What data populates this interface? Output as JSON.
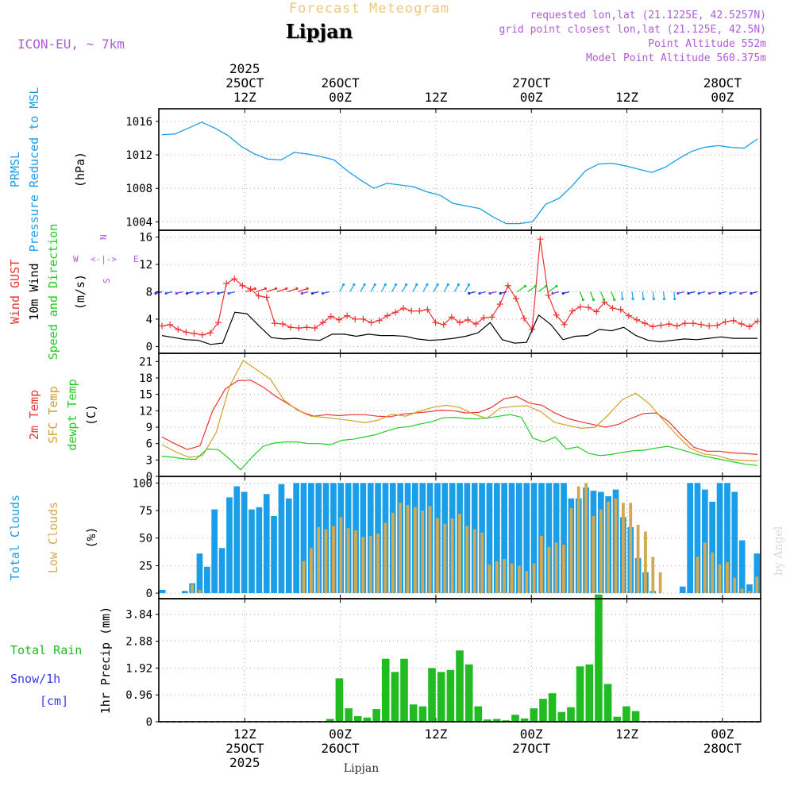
{
  "header": {
    "product": "Forecast Meteogram",
    "location": "Lipjan",
    "model": "ICON-EU, ~ 7km",
    "requested": "requested lon,lat (21.1225E, 42.5257N)",
    "grid_point": "grid point closest lon,lat (21.125E, 42.5N)",
    "point_altitude": "Point Altitude 552m",
    "model_altitude": "Model Point Altitude 560.375m",
    "watermark": "by Angel",
    "footer_location": "Lipjan",
    "compass": {
      "w": "W",
      "e": "E",
      "n": "N",
      "s": "S",
      "arrow": "<-|->"
    }
  },
  "colors": {
    "pressure": "#1a9ee8",
    "gust": "#ee3333",
    "wind": "#000000",
    "t2m": "#ee3333",
    "tsfc": "#d4a028",
    "dew": "#22cc22",
    "total_cloud": "#1a9ee8",
    "low_cloud": "#d4a850",
    "rain": "#22bb22",
    "meta": "#b05cd8",
    "snow": "#3a3ae8",
    "product": "#f0c878"
  },
  "chart_data": {
    "type": "meteogram",
    "time_axis": {
      "start_hour": 0,
      "end_hour": 63,
      "top_labels": [
        {
          "hour": 9,
          "lines": [
            "2025",
            "25OCT",
            "12Z"
          ]
        },
        {
          "hour": 19,
          "lines": [
            "26OCT",
            "00Z"
          ]
        },
        {
          "hour": 29,
          "lines": [
            "12Z"
          ]
        },
        {
          "hour": 39,
          "lines": [
            "27OCT",
            "00Z"
          ]
        },
        {
          "hour": 49,
          "lines": [
            "12Z"
          ]
        },
        {
          "hour": 59,
          "lines": [
            "28OCT",
            "00Z"
          ]
        }
      ],
      "bottom_labels": [
        {
          "hour": 9,
          "lines": [
            "12Z",
            "25OCT",
            "2025"
          ]
        },
        {
          "hour": 19,
          "lines": [
            "00Z",
            "26OCT"
          ]
        },
        {
          "hour": 29,
          "lines": [
            "12Z"
          ]
        },
        {
          "hour": 39,
          "lines": [
            "00Z",
            "27OCT"
          ]
        },
        {
          "hour": 49,
          "lines": [
            "12Z"
          ]
        },
        {
          "hour": 59,
          "lines": [
            "00Z",
            "28OCT"
          ]
        }
      ]
    },
    "panels": [
      {
        "id": "pressure",
        "type": "line",
        "ylabels": [
          "PRMSL",
          "Pressure Reduced to MSL",
          "(hPa)"
        ],
        "ylim": [
          1003,
          1017.5
        ],
        "yticks": [
          1004,
          1008,
          1012,
          1016
        ],
        "series": [
          {
            "name": "PRMSL",
            "color_key": "pressure",
            "values": [
              1014.4,
              1014.5,
              1015.2,
              1015.9,
              1015.2,
              1014.3,
              1013.0,
              1012.1,
              1011.5,
              1011.4,
              1012.3,
              1012.1,
              1011.8,
              1011.4,
              1010.1,
              1009.0,
              1008.0,
              1008.6,
              1008.4,
              1008.2,
              1007.6,
              1007.2,
              1006.2,
              1005.9,
              1005.6,
              1004.6,
              1003.8,
              1003.8,
              1004.0,
              1006.1,
              1006.8,
              1008.3,
              1010.1,
              1010.9,
              1011.0,
              1010.7,
              1010.3,
              1009.9,
              1010.5,
              1011.5,
              1012.4,
              1012.9,
              1013.1,
              1012.9,
              1012.8,
              1013.9
            ]
          }
        ]
      },
      {
        "id": "wind",
        "type": "line",
        "ylabels": [
          "Wind GUST",
          "10m Wind",
          "Speed and Direction",
          "(m/s)"
        ],
        "ylim": [
          -1,
          17
        ],
        "yticks": [
          0,
          4,
          8,
          12,
          16
        ],
        "series": [
          {
            "name": "Wind GUST",
            "color_key": "gust",
            "marker": "plus",
            "values": [
              3.0,
              3.2,
              2.5,
              2.1,
              1.9,
              1.7,
              2.0,
              3.5,
              9.2,
              9.9,
              8.9,
              8.4,
              7.4,
              7.2,
              3.4,
              3.3,
              2.8,
              2.7,
              2.8,
              2.7,
              3.5,
              4.4,
              3.9,
              4.5,
              4.0,
              4.0,
              3.5,
              3.8,
              4.5,
              5.0,
              5.6,
              5.2,
              5.2,
              5.4,
              3.5,
              3.2,
              4.3,
              3.5,
              3.9,
              3.3,
              4.2,
              4.3,
              6.2,
              8.9,
              7.0,
              4.1,
              2.5,
              15.7,
              7.5,
              4.6,
              3.2,
              5.2,
              5.8,
              5.7,
              5.1,
              6.5,
              5.6,
              5.4,
              4.5,
              3.9,
              3.4,
              2.9,
              3.1,
              3.3,
              3.0,
              3.4,
              3.4,
              3.2,
              3.0,
              3.1,
              3.6,
              3.8,
              3.3,
              2.9,
              3.7
            ]
          },
          {
            "name": "10m Wind",
            "color_key": "wind",
            "values": [
              1.6,
              1.3,
              1.0,
              0.9,
              0.3,
              0.5,
              5.0,
              4.8,
              3.0,
              1.3,
              1.1,
              1.2,
              1.0,
              0.9,
              1.8,
              1.8,
              1.5,
              1.8,
              1.6,
              1.6,
              1.5,
              1.1,
              0.9,
              1.0,
              1.2,
              1.5,
              2.0,
              3.5,
              1.0,
              0.5,
              0.6,
              4.6,
              3.2,
              1.0,
              1.5,
              1.6,
              2.5,
              2.3,
              2.8,
              1.6,
              0.9,
              0.7,
              0.9,
              1.1,
              1.0,
              1.2,
              1.4,
              1.2,
              1.2,
              1.2
            ]
          }
        ],
        "barbs": {
          "row_value": 8,
          "count": 58
        }
      },
      {
        "id": "temperature",
        "type": "line",
        "ylabels": [
          "2m Temp",
          "SFC Temp",
          "dewpt Temp",
          "(C)"
        ],
        "ylim": [
          0,
          22.5
        ],
        "yticks": [
          0,
          3,
          6,
          9,
          12,
          15,
          18,
          21
        ],
        "series": [
          {
            "name": "2m Temp",
            "color_key": "t2m",
            "values": [
              7.2,
              6.0,
              4.9,
              5.6,
              12.0,
              16.0,
              17.5,
              17.6,
              16.3,
              14.6,
              13.2,
              11.8,
              11.0,
              11.3,
              11.1,
              11.3,
              11.3,
              11.0,
              10.9,
              11.4,
              11.6,
              11.8,
              12.1,
              12.0,
              11.6,
              11.7,
              12.6,
              14.2,
              14.6,
              13.4,
              13.0,
              11.6,
              10.6,
              10.0,
              9.5,
              9.0,
              9.5,
              10.6,
              11.5,
              11.6,
              10.0,
              7.5,
              5.3,
              4.6,
              4.6,
              4.3,
              4.2,
              4.0
            ]
          },
          {
            "name": "SFC Temp",
            "color_key": "tsfc",
            "values": [
              5.8,
              4.5,
              3.5,
              3.8,
              8.0,
              16.5,
              21.2,
              19.5,
              17.8,
              14.0,
              12.1,
              11.0,
              10.8,
              10.5,
              10.2,
              9.8,
              10.3,
              11.4,
              11.0,
              11.9,
              12.6,
              13.0,
              12.6,
              11.4,
              10.6,
              12.5,
              12.8,
              12.9,
              11.8,
              9.9,
              9.3,
              8.8,
              9.0,
              11.3,
              14.0,
              15.2,
              13.3,
              10.4,
              7.7,
              5.2,
              4.1,
              3.8,
              3.1,
              2.9,
              2.8
            ]
          },
          {
            "name": "dewpt Temp",
            "color_key": "dew",
            "values": [
              3.7,
              3.5,
              3.2,
              3.1,
              5.0,
              4.9,
              3.2,
              1.2,
              3.5,
              5.5,
              6.1,
              6.3,
              6.3,
              6.0,
              6.0,
              5.8,
              6.6,
              6.8,
              7.2,
              7.6,
              8.3,
              8.9,
              9.1,
              9.6,
              10.0,
              10.7,
              10.8,
              10.6,
              10.5,
              10.7,
              11.0,
              11.3,
              10.8,
              7.0,
              6.3,
              7.2,
              5.0,
              5.4,
              4.2,
              3.8,
              4.0,
              4.4,
              4.7,
              4.8,
              5.2,
              5.5,
              5.0,
              4.4,
              3.8,
              3.4,
              3.0,
              2.6,
              2.2,
              2.0
            ]
          }
        ]
      },
      {
        "id": "clouds",
        "type": "bar",
        "ylabels": [
          "Total Clouds",
          "Low Clouds",
          "(%)"
        ],
        "ylim": [
          -5,
          106
        ],
        "yticks": [
          0,
          25,
          50,
          75,
          100
        ],
        "series": [
          {
            "name": "Total Clouds",
            "color_key": "total_cloud",
            "values": [
              3,
              0,
              0,
              2,
              9,
              36,
              24,
              76,
              41,
              87,
              97,
              92,
              76,
              78,
              90,
              70,
              99,
              86,
              100,
              100,
              100,
              100,
              100,
              100,
              100,
              100,
              100,
              100,
              100,
              100,
              100,
              100,
              100,
              100,
              100,
              100,
              100,
              100,
              100,
              100,
              100,
              100,
              100,
              100,
              100,
              100,
              100,
              100,
              100,
              100,
              100,
              100,
              100,
              100,
              100,
              86,
              86,
              96,
              93,
              92,
              88,
              94,
              69,
              60,
              32,
              19,
              2,
              0,
              0,
              0,
              6,
              100,
              100,
              94,
              83,
              100,
              100,
              92,
              48,
              8,
              36
            ]
          },
          {
            "name": "Low Clouds",
            "color_key": "low_cloud",
            "values": [
              0,
              0,
              0,
              0,
              8,
              3,
              0,
              0,
              0,
              0,
              0,
              0,
              0,
              0,
              0,
              0,
              0,
              0,
              0,
              29,
              41,
              60,
              58,
              61,
              69,
              59,
              57,
              51,
              52,
              54,
              64,
              73,
              82,
              80,
              78,
              75,
              79,
              68,
              63,
              68,
              72,
              61,
              58,
              55,
              26,
              29,
              31,
              27,
              25,
              20,
              27,
              52,
              42,
              46,
              44,
              77,
              97,
              100,
              70,
              76,
              83,
              86,
              82,
              82,
              62,
              56,
              33,
              19,
              0,
              0,
              0,
              0,
              33,
              46,
              37,
              26,
              28,
              14,
              4,
              2,
              15
            ]
          }
        ]
      },
      {
        "id": "precip",
        "type": "bar",
        "ylabels": [
          "1hr Precip (mm)"
        ],
        "side_labels": [
          "Total  Rain",
          "Snow/1h",
          "[cm]"
        ],
        "ylim": [
          0,
          4.4
        ],
        "yticks": [
          0,
          0.96,
          1.92,
          2.88,
          3.84
        ],
        "series": [
          {
            "name": "1hr Precip",
            "color_key": "rain",
            "values": [
              0,
              0,
              0,
              0,
              0,
              0,
              0,
              0,
              0,
              0,
              0,
              0,
              0,
              0,
              0,
              0,
              0,
              0,
              0.1,
              1.55,
              0.48,
              0.2,
              0.15,
              0.45,
              2.25,
              1.78,
              2.25,
              0.62,
              0.55,
              1.92,
              1.78,
              1.85,
              2.55,
              2.05,
              0.55,
              0.08,
              0.1,
              0.05,
              0.25,
              0.12,
              0.48,
              0.82,
              1.02,
              0.35,
              0.52,
              1.98,
              2.05,
              4.55,
              1.35,
              0.18,
              0.55,
              0.38,
              0,
              0,
              0,
              0,
              0,
              0,
              0,
              0,
              0,
              0,
              0,
              0,
              0
            ]
          }
        ]
      }
    ]
  }
}
